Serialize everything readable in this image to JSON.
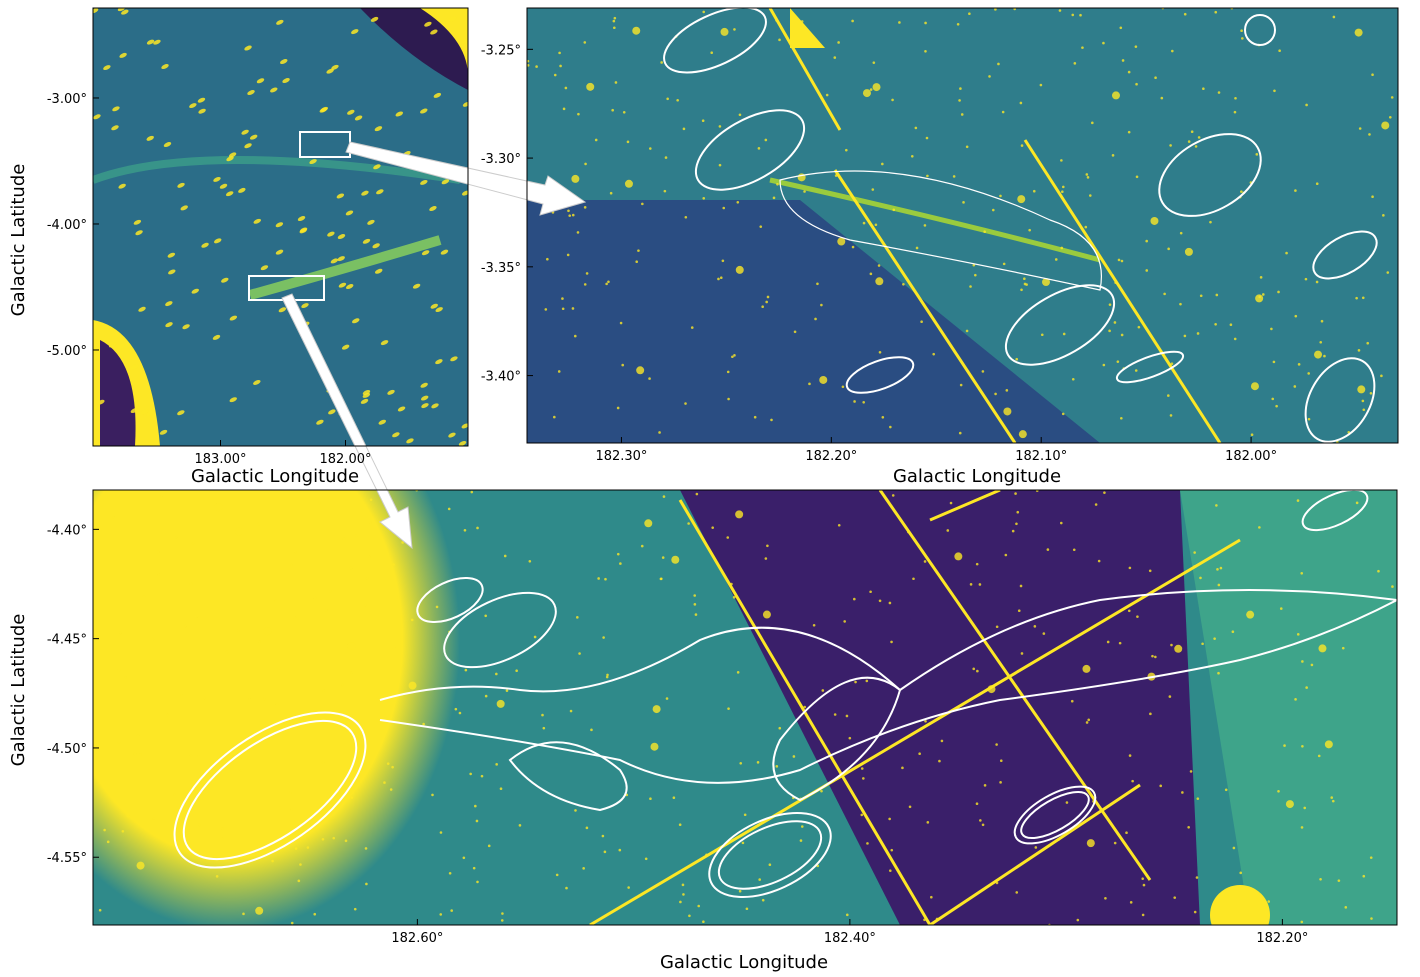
{
  "chart_data": [
    {
      "type": "image",
      "xlabel": "Galactic Longitude",
      "ylabel": "Galactic Latitude",
      "xlim": [
        184.02,
        181.02
      ],
      "ylim": [
        -5.762,
        -2.286
      ],
      "xticks": [
        {
          "value": 183.0,
          "label": "183.00°"
        },
        {
          "value": 182.0,
          "label": "182.00°"
        }
      ],
      "yticks": [
        {
          "value": -3.0,
          "label": "-3.00°"
        },
        {
          "value": -4.0,
          "label": "-4.00°"
        },
        {
          "value": -5.0,
          "label": "-5.00°"
        }
      ]
    },
    {
      "type": "image",
      "xlabel": "Galactic Longitude",
      "xlim": [
        182.345,
        181.93
      ],
      "ylim": [
        -3.431,
        -3.231
      ],
      "xticks": [
        {
          "value": 182.3,
          "label": "182.30°"
        },
        {
          "value": 182.2,
          "label": "182.20°"
        },
        {
          "value": 182.1,
          "label": "182.10°"
        },
        {
          "value": 182.0,
          "label": "182.00°"
        }
      ],
      "yticks": [
        {
          "value": -3.25,
          "label": "-3.25°"
        },
        {
          "value": -3.3,
          "label": "-3.30°"
        },
        {
          "value": -3.35,
          "label": "-3.35°"
        },
        {
          "value": -3.4,
          "label": "-3.40°"
        }
      ]
    },
    {
      "type": "image",
      "xlabel": "Galactic Longitude",
      "ylabel": "Galactic Latitude",
      "xlim": [
        182.75,
        182.147
      ],
      "ylim": [
        -4.581,
        -4.382
      ],
      "xticks": [
        {
          "value": 182.6,
          "label": "182.60°"
        },
        {
          "value": 182.4,
          "label": "182.40°"
        },
        {
          "value": 182.2,
          "label": "182.20°"
        }
      ],
      "yticks": [
        {
          "value": -4.4,
          "label": "-4.40°"
        },
        {
          "value": -4.45,
          "label": "-4.45°"
        },
        {
          "value": -4.5,
          "label": "-4.50°"
        },
        {
          "value": -4.55,
          "label": "-4.55°"
        }
      ]
    }
  ]
}
